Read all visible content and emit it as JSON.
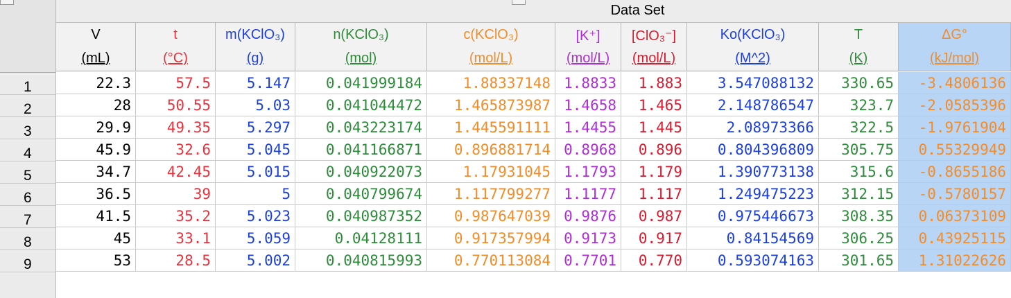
{
  "table": {
    "title": "Data Set",
    "columns": [
      {
        "key": "V",
        "label": "V",
        "unit": "(mL)",
        "color": "#000000"
      },
      {
        "key": "t",
        "label": "t",
        "unit": "(°C)",
        "color": "#e8323c"
      },
      {
        "key": "m",
        "label": "m(KClO₃)",
        "unit": "(g)",
        "color": "#1c3fe0"
      },
      {
        "key": "n",
        "label": "n(KClO₃)",
        "unit": "(mol)",
        "color": "#2e8b3a"
      },
      {
        "key": "c",
        "label": "c(KClO₃)",
        "unit": "(mol/L)",
        "color": "#f28c28"
      },
      {
        "key": "k",
        "label": "[K⁺]",
        "unit": "(mol/L)",
        "color": "#b02cd8"
      },
      {
        "key": "clo",
        "label": "[ClO₃⁻]",
        "unit": "(mol/L)",
        "color": "#d81b2e"
      },
      {
        "key": "ko",
        "label": "Ko(KClO₃)",
        "unit": "(M^2)",
        "color": "#1c3fe0"
      },
      {
        "key": "T",
        "label": "T",
        "unit": "(K)",
        "color": "#2e8b3a"
      },
      {
        "key": "dg",
        "label": "ΔG°",
        "unit": "(kJ/mol)",
        "color": "#f28c28",
        "selected": true
      }
    ],
    "row_numbers": [
      "1",
      "2",
      "3",
      "4",
      "5",
      "6",
      "7",
      "8",
      "9"
    ],
    "rows": [
      [
        "22.3",
        "57.5",
        "5.147",
        "0.041999184",
        "1.88337148",
        "1.8833",
        "1.883",
        "3.547088132",
        "330.65",
        "-3.4806136"
      ],
      [
        "28",
        "50.55",
        "5.03",
        "0.041044472",
        "1.465873987",
        "1.4658",
        "1.465",
        "2.148786547",
        "323.7",
        "-2.0585396"
      ],
      [
        "29.9",
        "49.35",
        "5.297",
        "0.043223174",
        "1.445591111",
        "1.4455",
        "1.445",
        "2.08973366",
        "322.5",
        "-1.9761904"
      ],
      [
        "45.9",
        "32.6",
        "5.045",
        "0.041166871",
        "0.896881714",
        "0.8968",
        "0.896",
        "0.804396809",
        "305.75",
        "0.55329949"
      ],
      [
        "34.7",
        "42.45",
        "5.015",
        "0.040922073",
        "1.17931045",
        "1.1793",
        "1.179",
        "1.390773138",
        "315.6",
        "-0.8655186"
      ],
      [
        "36.5",
        "39",
        "5",
        "0.040799674",
        "1.117799277",
        "1.1177",
        "1.117",
        "1.249475223",
        "312.15",
        "-0.5780157"
      ],
      [
        "41.5",
        "35.2",
        "5.023",
        "0.040987352",
        "0.987647039",
        "0.9876",
        "0.987",
        "0.975446673",
        "308.35",
        "0.06373109"
      ],
      [
        "45",
        "33.1",
        "5.059",
        "0.04128111",
        "0.917357994",
        "0.9173",
        "0.917",
        "0.84154569",
        "306.25",
        "0.43925115"
      ],
      [
        "53",
        "28.5",
        "5.002",
        "0.040815993",
        "0.770113084",
        "0.7701",
        "0.770",
        "0.593074163",
        "301.65",
        "1.31022626"
      ]
    ]
  }
}
